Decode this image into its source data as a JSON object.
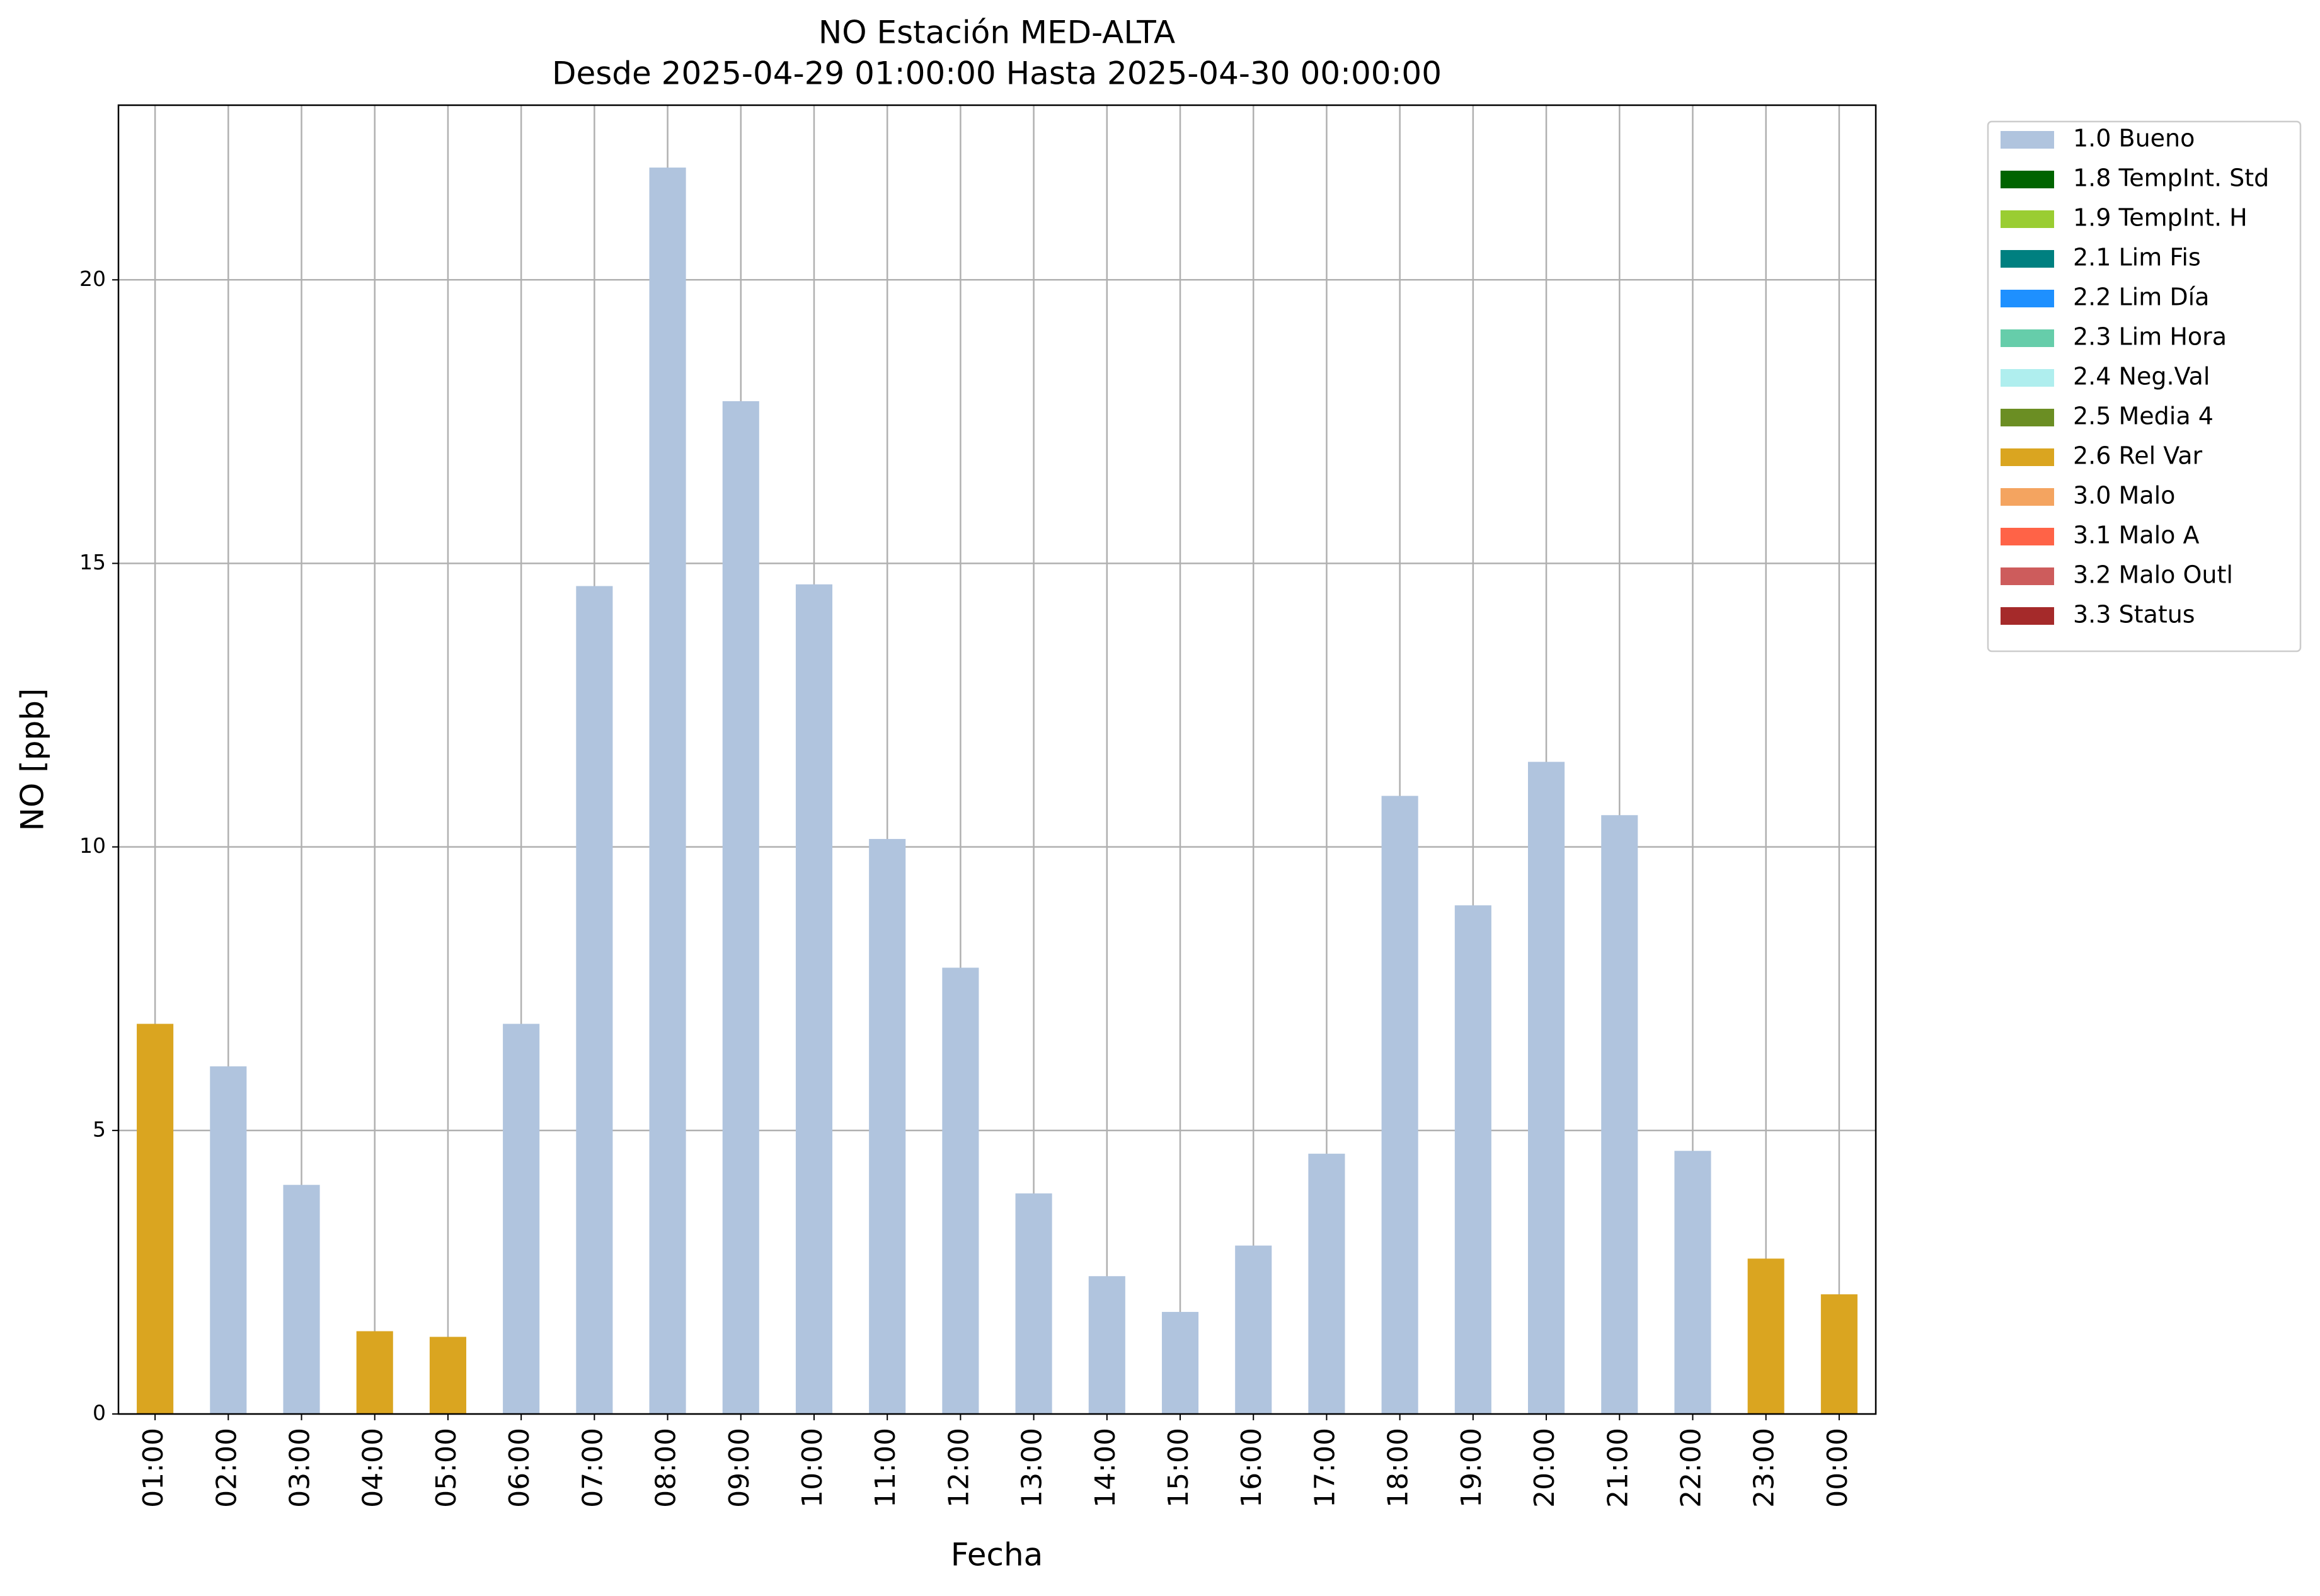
{
  "chart_data": {
    "type": "stacked_bar",
    "title": "NO Estación MED-ALTA",
    "subtitle": "Desde 2025-04-29 01:00:00 Hasta 2025-04-30 00:00:00",
    "x_label": "Fecha",
    "y_label": "NO [ppb]",
    "categories": [
      "01:00",
      "02:00",
      "03:00",
      "04:00",
      "05:00",
      "06:00",
      "07:00",
      "08:00",
      "09:00",
      "10:00",
      "11:00",
      "12:00",
      "13:00",
      "14:00",
      "15:00",
      "16:00",
      "17:00",
      "18:00",
      "19:00",
      "20:00",
      "21:00",
      "22:00",
      "23:00",
      "00:00"
    ],
    "series": [
      {
        "name": "1.0 Bueno",
        "color": "#b0c4de",
        "values": [
          null,
          6.13,
          4.04,
          null,
          null,
          6.88,
          14.6,
          21.98,
          17.86,
          14.63,
          10.14,
          7.87,
          3.89,
          2.43,
          1.8,
          2.97,
          4.59,
          10.9,
          8.97,
          11.5,
          10.56,
          4.64,
          null,
          null
        ]
      },
      {
        "name": "1.8 TempInt. Std",
        "color": "#006400",
        "values": [
          null,
          null,
          null,
          null,
          null,
          null,
          null,
          null,
          null,
          null,
          null,
          null,
          null,
          null,
          null,
          null,
          null,
          null,
          null,
          null,
          null,
          null,
          null,
          null
        ]
      },
      {
        "name": "1.9 TempInt. H",
        "color": "#9acd32",
        "values": [
          null,
          null,
          null,
          null,
          null,
          null,
          null,
          null,
          null,
          null,
          null,
          null,
          null,
          null,
          null,
          null,
          null,
          null,
          null,
          null,
          null,
          null,
          null,
          null
        ]
      },
      {
        "name": "2.1 Lim Fis",
        "color": "#008080",
        "values": [
          null,
          null,
          null,
          null,
          null,
          null,
          null,
          null,
          null,
          null,
          null,
          null,
          null,
          null,
          null,
          null,
          null,
          null,
          null,
          null,
          null,
          null,
          null,
          null
        ]
      },
      {
        "name": "2.2 Lim Día",
        "color": "#1e90ff",
        "values": [
          null,
          null,
          null,
          null,
          null,
          null,
          null,
          null,
          null,
          null,
          null,
          null,
          null,
          null,
          null,
          null,
          null,
          null,
          null,
          null,
          null,
          null,
          null,
          null
        ]
      },
      {
        "name": "2.3 Lim Hora",
        "color": "#66cdaa",
        "values": [
          null,
          null,
          null,
          null,
          null,
          null,
          null,
          null,
          null,
          null,
          null,
          null,
          null,
          null,
          null,
          null,
          null,
          null,
          null,
          null,
          null,
          null,
          null,
          null
        ]
      },
      {
        "name": "2.4 Neg.Val",
        "color": "#afeeee",
        "values": [
          null,
          null,
          null,
          null,
          null,
          null,
          null,
          null,
          null,
          null,
          null,
          null,
          null,
          null,
          null,
          null,
          null,
          null,
          null,
          null,
          null,
          null,
          null,
          null
        ]
      },
      {
        "name": "2.5 Media 4",
        "color": "#6b8e23",
        "values": [
          null,
          null,
          null,
          null,
          null,
          null,
          null,
          null,
          null,
          null,
          null,
          null,
          null,
          null,
          null,
          null,
          null,
          null,
          null,
          null,
          null,
          null,
          null,
          null
        ]
      },
      {
        "name": "2.6 Rel Var",
        "color": "#daa520",
        "values": [
          6.88,
          null,
          null,
          1.46,
          1.36,
          null,
          null,
          null,
          null,
          null,
          null,
          null,
          null,
          null,
          null,
          null,
          null,
          null,
          null,
          null,
          null,
          null,
          2.74,
          2.11
        ]
      },
      {
        "name": "3.0 Malo",
        "color": "#f4a460",
        "values": [
          null,
          null,
          null,
          null,
          null,
          null,
          null,
          null,
          null,
          null,
          null,
          null,
          null,
          null,
          null,
          null,
          null,
          null,
          null,
          null,
          null,
          null,
          null,
          null
        ]
      },
      {
        "name": "3.1 Malo A",
        "color": "#ff6347",
        "values": [
          null,
          null,
          null,
          null,
          null,
          null,
          null,
          null,
          null,
          null,
          null,
          null,
          null,
          null,
          null,
          null,
          null,
          null,
          null,
          null,
          null,
          null,
          null,
          null
        ]
      },
      {
        "name": "3.2 Malo Outl",
        "color": "#cd5c5c",
        "values": [
          null,
          null,
          null,
          null,
          null,
          null,
          null,
          null,
          null,
          null,
          null,
          null,
          null,
          null,
          null,
          null,
          null,
          null,
          null,
          null,
          null,
          null,
          null,
          null
        ]
      },
      {
        "name": "3.3 Status",
        "color": "#a52a2a",
        "values": [
          null,
          null,
          null,
          null,
          null,
          null,
          null,
          null,
          null,
          null,
          null,
          null,
          null,
          null,
          null,
          null,
          null,
          null,
          null,
          null,
          null,
          null,
          null,
          null
        ]
      }
    ],
    "ylim": [
      0,
      23.08
    ],
    "yticks": [
      0,
      5,
      10,
      15,
      20
    ],
    "grid": true,
    "legend": "outside-right"
  }
}
